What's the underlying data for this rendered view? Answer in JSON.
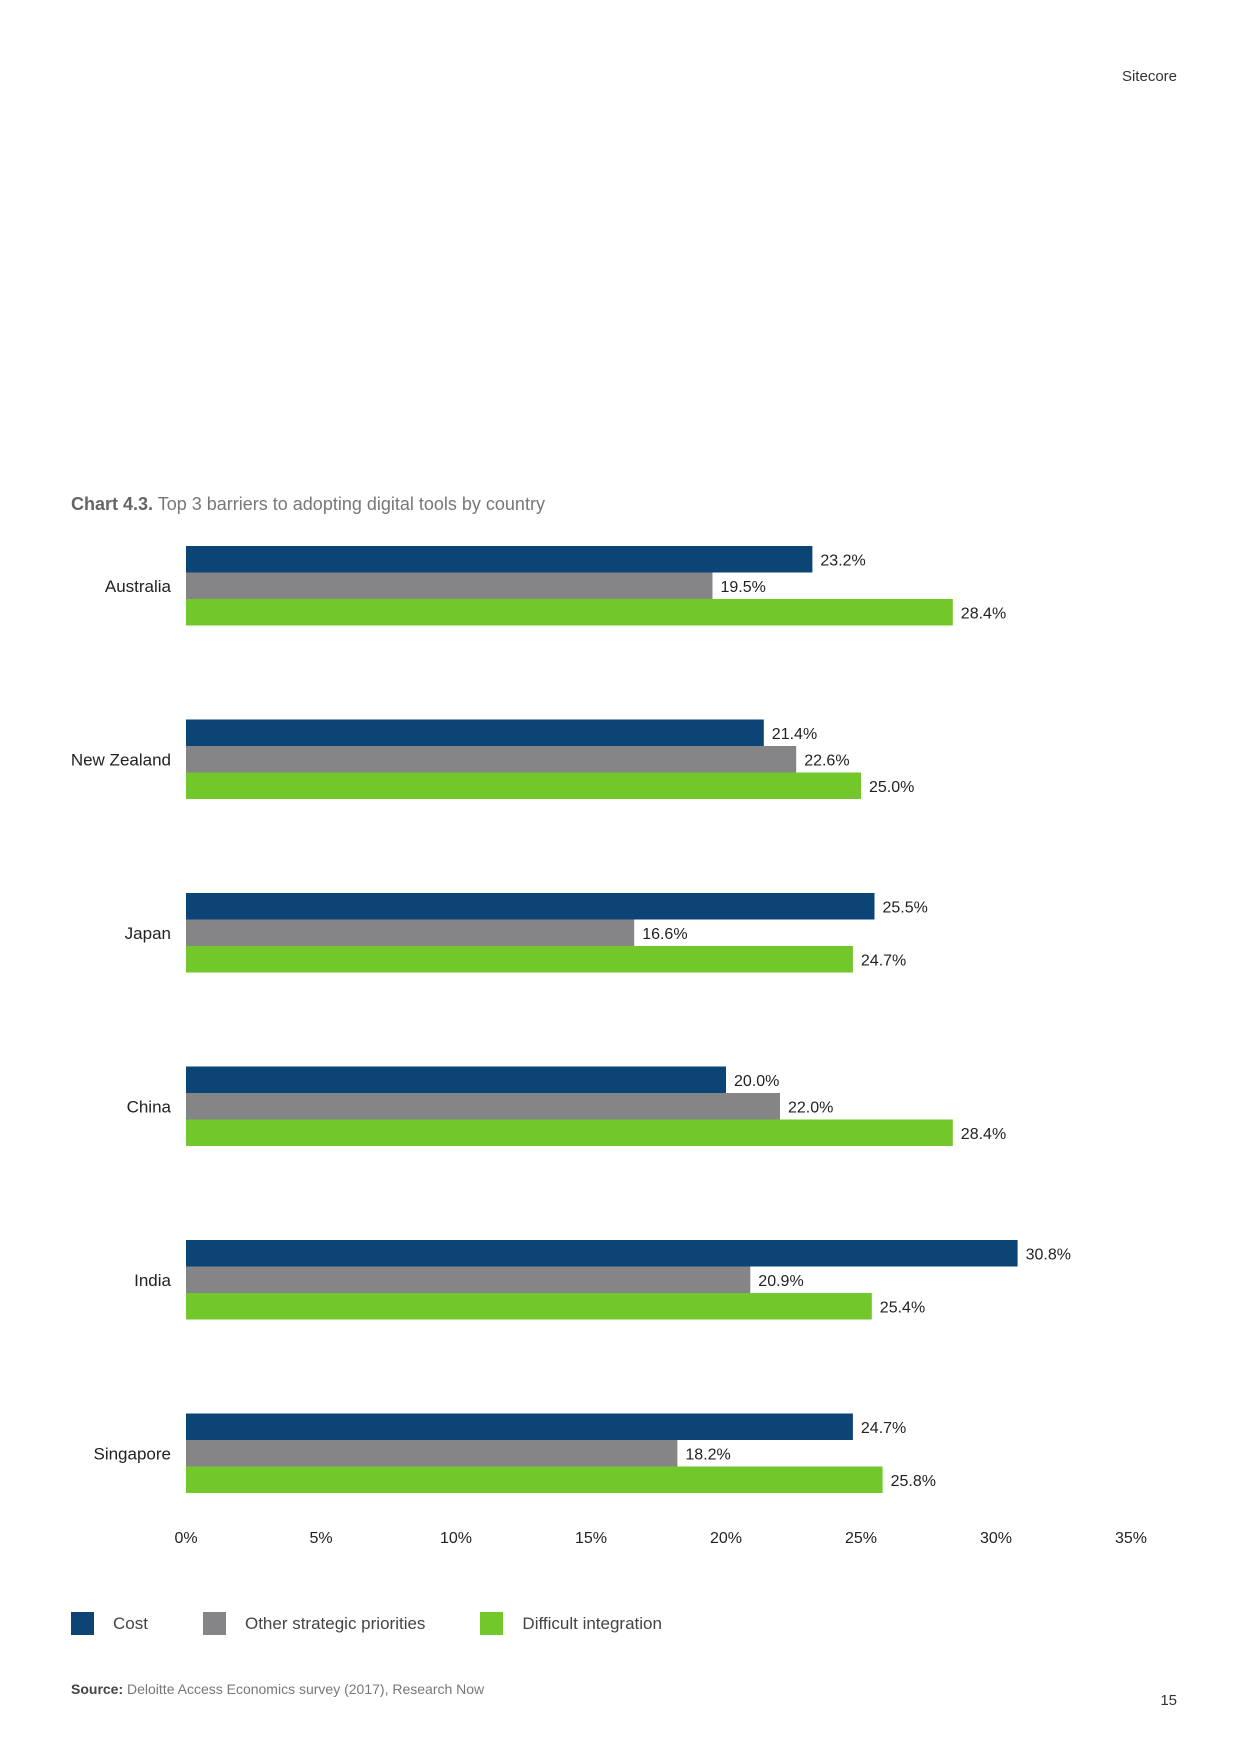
{
  "header": {
    "brand": "Sitecore"
  },
  "chart_title": {
    "prefix": "Chart 4.3.",
    "text": "Top 3 barriers to adopting digital tools by country"
  },
  "chart_data": {
    "type": "bar",
    "orientation": "horizontal",
    "categories": [
      "Australia",
      "New Zealand",
      "Japan",
      "China",
      "India",
      "Singapore"
    ],
    "series": [
      {
        "name": "Cost",
        "color": "#0c4476",
        "values": [
          23.2,
          21.4,
          25.5,
          20.0,
          30.8,
          24.7
        ],
        "labels": [
          "23.2%",
          "21.4%",
          "25.5%",
          "20.0%",
          "30.8%",
          "24.7%"
        ]
      },
      {
        "name": "Other strategic priorities",
        "color": "#858588",
        "values": [
          19.5,
          22.6,
          16.6,
          22.0,
          20.9,
          18.2
        ],
        "labels": [
          "19.5%",
          "22.6%",
          "16.6%",
          "22.0%",
          "20.9%",
          "18.2%"
        ]
      },
      {
        "name": "Difficult integration",
        "color": "#72c72a",
        "values": [
          28.4,
          25.0,
          24.7,
          28.4,
          25.4,
          25.8
        ],
        "labels": [
          "28.4%",
          "25.0%",
          "24.7%",
          "28.4%",
          "25.4%",
          "25.8%"
        ]
      }
    ],
    "xlim": [
      0,
      35
    ],
    "xticks": [
      0,
      5,
      10,
      15,
      20,
      25,
      30,
      35
    ],
    "xtick_labels": [
      "0%",
      "5%",
      "10%",
      "15%",
      "20%",
      "25%",
      "30%",
      "35%"
    ],
    "grid": false,
    "legend": "bottom-left"
  },
  "legend": [
    {
      "label": "Cost",
      "color": "#0c4476"
    },
    {
      "label": "Other strategic priorities",
      "color": "#858588"
    },
    {
      "label": "Difficult integration",
      "color": "#72c72a"
    }
  ],
  "source": {
    "label": "Source:",
    "text": "Deloitte Access Economics survey (2017), Research Now"
  },
  "page_number": "15"
}
